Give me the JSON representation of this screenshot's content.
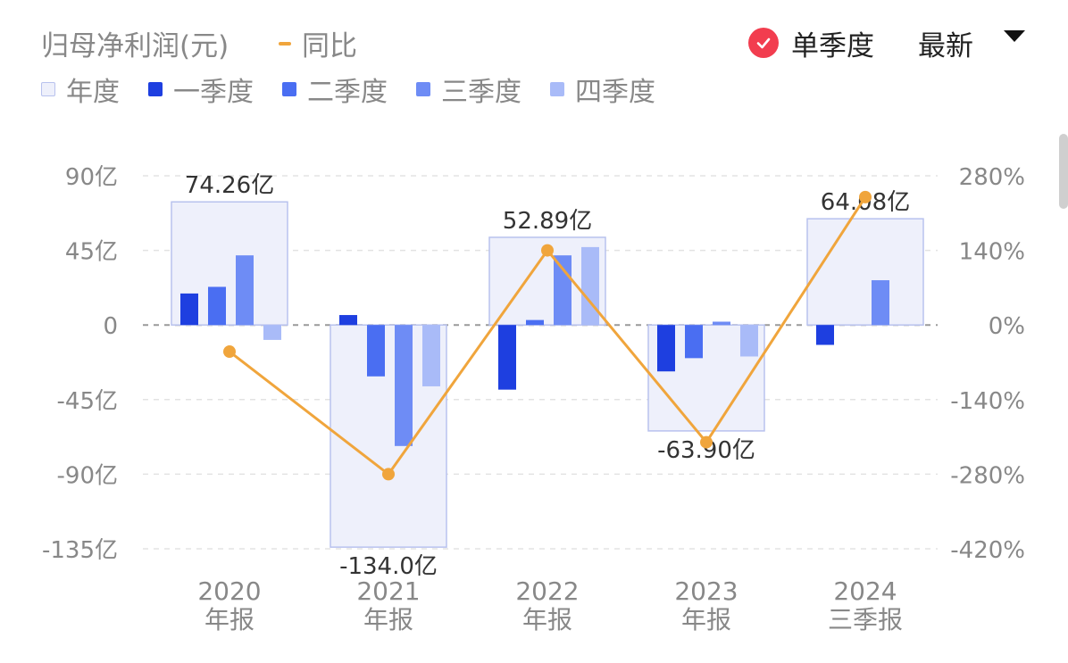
{
  "header": {
    "title": "归母净利润(元)",
    "yoy_label": "同比",
    "mode_label": "单季度",
    "latest_label": "最新"
  },
  "legend": {
    "annual": "年度",
    "q1": "一季度",
    "q2": "二季度",
    "q3": "三季度",
    "q4": "四季度"
  },
  "colors": {
    "annual_fill": "#eef0fb",
    "annual_border": "#b8c2ee",
    "q1": "#1e3fe0",
    "q2": "#4a6ef2",
    "q3": "#6e8cf5",
    "q4": "#a9bbf8",
    "yoy": "#f0a53c",
    "check": "#f23d4f"
  },
  "chart_data": {
    "type": "bar",
    "categories": [
      {
        "year": "2020",
        "period": "年报"
      },
      {
        "year": "2021",
        "period": "年报"
      },
      {
        "year": "2022",
        "period": "年报"
      },
      {
        "year": "2023",
        "period": "年报"
      },
      {
        "year": "2024",
        "period": "三季报"
      }
    ],
    "annual_values": [
      74.26,
      -134.0,
      52.89,
      -63.9,
      64.08
    ],
    "annual_labels": [
      "74.26亿",
      "-134.0亿",
      "52.89亿",
      "-63.90亿",
      "64.08亿"
    ],
    "series": [
      {
        "name": "一季度",
        "values": [
          19,
          6,
          -39,
          -28,
          -12
        ]
      },
      {
        "name": "二季度",
        "values": [
          23,
          -31,
          3,
          -20,
          null
        ]
      },
      {
        "name": "三季度",
        "values": [
          42,
          -73,
          42,
          2,
          27
        ]
      },
      {
        "name": "四季度",
        "values": [
          -9,
          -37,
          47,
          -19,
          null
        ]
      }
    ],
    "yoy": {
      "name": "同比",
      "values": [
        -50,
        -280,
        140,
        -220,
        240
      ]
    },
    "ylim": [
      -135,
      90
    ],
    "yticks": [
      90,
      45,
      0,
      -45,
      -90,
      -135
    ],
    "ytick_labels": [
      "90亿",
      "45亿",
      "0",
      "-45亿",
      "-90亿",
      "-135亿"
    ],
    "y2lim": [
      -420,
      280
    ],
    "y2ticks": [
      280,
      140,
      0,
      -140,
      -280,
      -420
    ],
    "y2tick_labels": [
      "280%",
      "140%",
      "0%",
      "-140%",
      "-280%",
      "-420%"
    ],
    "grid": true
  }
}
